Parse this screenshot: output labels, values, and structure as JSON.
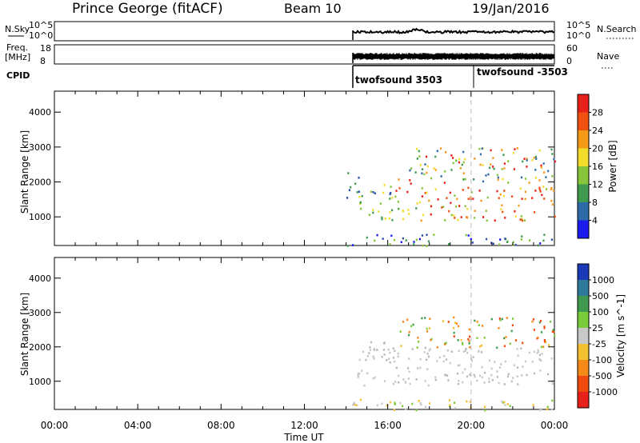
{
  "header": {
    "station": "Prince George (fitACF)",
    "beam": "Beam 10",
    "date": "19/Jan/2016"
  },
  "sky_panel": {
    "left_label": "N.Sky",
    "right_label": "N.Search",
    "left_ticks": [
      "10^5",
      "10^0"
    ],
    "right_ticks": [
      "10^5",
      "10^0"
    ]
  },
  "freq_panel": {
    "left_label_1": "Freq.",
    "left_label_2": "[MHz]",
    "right_label": "Nave",
    "left_ticks": [
      "18",
      "8"
    ],
    "right_ticks": [
      "60",
      "0"
    ]
  },
  "cpid": {
    "label": "CPID",
    "segments": [
      {
        "name": "twofsound 3503",
        "start_hour": 14.0
      },
      {
        "name": "twofsound -3503",
        "start_hour": 20.0
      }
    ]
  },
  "chart_data": [
    {
      "type": "heatmap",
      "title": "Power",
      "xlabel": "Time UT",
      "ylabel": "Slant Range [km]",
      "xlim": [
        0,
        24
      ],
      "ylim": [
        180,
        4600
      ],
      "x_tick_labels": [
        "00:00",
        "04:00",
        "08:00",
        "12:00",
        "16:00",
        "20:00",
        "00:00"
      ],
      "y_tick_labels": [
        "1000",
        "2000",
        "3000",
        "4000"
      ],
      "y_ticks": [
        1000,
        2000,
        3000,
        4000
      ],
      "colorbar_label": "Power [dB]",
      "colorbar_ticks": [
        "28",
        "24",
        "20",
        "16",
        "12",
        "8",
        "4"
      ],
      "colorbar_colors": [
        "#e8201a",
        "#f05010",
        "#f59a18",
        "#f2dc2c",
        "#88c43a",
        "#3f9a50",
        "#2c6aa8",
        "#1a1aee"
      ],
      "data_start_hour": 14.0,
      "scatter_bands": [
        {
          "t0": 14.0,
          "t1": 24.0,
          "r0": 180,
          "r1": 520,
          "colors": [
            "#2c4fa8",
            "#3f9a50",
            "#88c43a",
            "#1a1aee"
          ]
        },
        {
          "t0": 14.0,
          "t1": 14.8,
          "r0": 1500,
          "r1": 2300,
          "colors": [
            "#2c4fa8",
            "#3f9a50"
          ]
        },
        {
          "t0": 15.0,
          "t1": 16.5,
          "r0": 1500,
          "r1": 2000,
          "colors": [
            "#2c4fa8",
            "#88c43a",
            "#f2dc2c"
          ]
        },
        {
          "t0": 16.2,
          "t1": 17.2,
          "r0": 1700,
          "r1": 2200,
          "colors": [
            "#e8201a",
            "#f05010",
            "#f59a18"
          ]
        },
        {
          "t0": 17.0,
          "t1": 24.0,
          "r0": 2000,
          "r1": 3000,
          "colors": [
            "#88c43a",
            "#f2dc2c",
            "#3f9a50",
            "#f59a18",
            "#e8201a",
            "#2c6aa8"
          ]
        },
        {
          "t0": 17.5,
          "t1": 24.0,
          "r0": 900,
          "r1": 1900,
          "colors": [
            "#f05010",
            "#f59a18",
            "#e8201a",
            "#f2dc2c",
            "#88c43a"
          ]
        },
        {
          "t0": 14.5,
          "t1": 17.5,
          "r0": 900,
          "r1": 1600,
          "colors": [
            "#88c43a",
            "#f2dc2c",
            "#3f9a50"
          ]
        }
      ]
    },
    {
      "type": "heatmap",
      "title": "Velocity",
      "xlabel": "Time UT",
      "ylabel": "Slant Range [km]",
      "xlim": [
        0,
        24
      ],
      "ylim": [
        180,
        4600
      ],
      "x_tick_labels": [
        "00:00",
        "04:00",
        "08:00",
        "12:00",
        "16:00",
        "20:00",
        "00:00"
      ],
      "y_tick_labels": [
        "1000",
        "2000",
        "3000",
        "4000"
      ],
      "y_ticks": [
        1000,
        2000,
        3000,
        4000
      ],
      "colorbar_label": "Velocity [m s^-1]",
      "colorbar_ticks": [
        "1000",
        "500",
        "100",
        "25",
        "-25",
        "-100",
        "-500",
        "-1000"
      ],
      "colorbar_colors": [
        "#1a3ab8",
        "#2f7a9a",
        "#3f9a50",
        "#7acc3a",
        "#c8c8c8",
        "#f2c030",
        "#f58a18",
        "#f04a10",
        "#e8201a"
      ],
      "data_start_hour": 14.0,
      "scatter_bands": [
        {
          "t0": 14.0,
          "t1": 24.0,
          "r0": 180,
          "r1": 500,
          "colors": [
            "#c8c8c8",
            "#7acc3a",
            "#f2c030"
          ]
        },
        {
          "t0": 14.5,
          "t1": 24.0,
          "r0": 900,
          "r1": 2000,
          "colors": [
            "#c8c8c8",
            "#c8c8c8",
            "#b8b8b8"
          ]
        },
        {
          "t0": 16.5,
          "t1": 24.0,
          "r0": 2000,
          "r1": 2900,
          "colors": [
            "#f58a18",
            "#f04a10",
            "#f2c030",
            "#7acc3a",
            "#3f9a50"
          ]
        },
        {
          "t0": 14.5,
          "t1": 16.5,
          "r0": 1600,
          "r1": 2200,
          "colors": [
            "#c8c8c8",
            "#b8b8b8"
          ]
        }
      ]
    }
  ]
}
